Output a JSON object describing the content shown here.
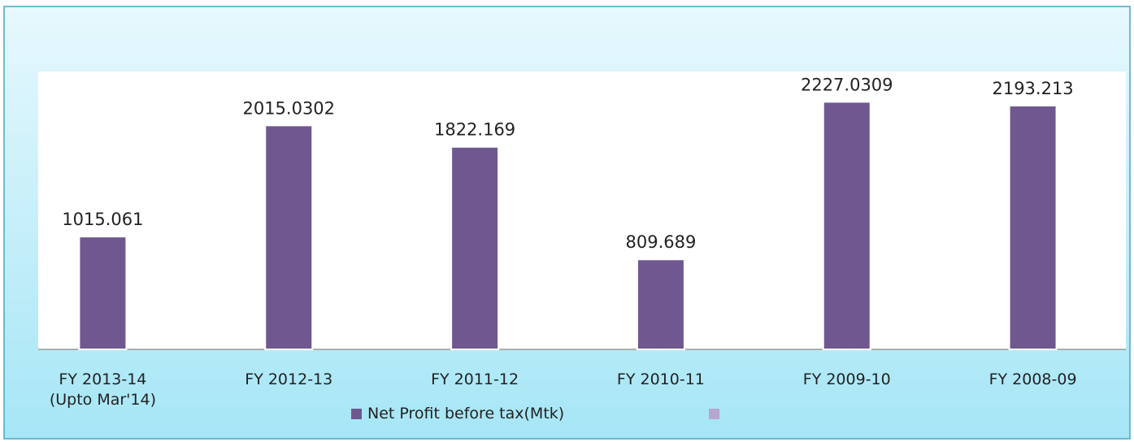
{
  "chart_data": {
    "type": "bar",
    "categories": [
      "FY 2013-14\n(Upto Mar'14)",
      "FY 2012-13",
      "FY 2011-12",
      "FY 2010-11",
      "FY 2009-10",
      "FY 2008-09"
    ],
    "series": [
      {
        "name": "Net Profit before tax(Mtk)",
        "color": "#6f5890",
        "values": [
          1015.061,
          2015.0302,
          1822.169,
          809.689,
          2227.0309,
          2193.213
        ]
      }
    ],
    "ylim": [
      0,
      2500
    ]
  }
}
